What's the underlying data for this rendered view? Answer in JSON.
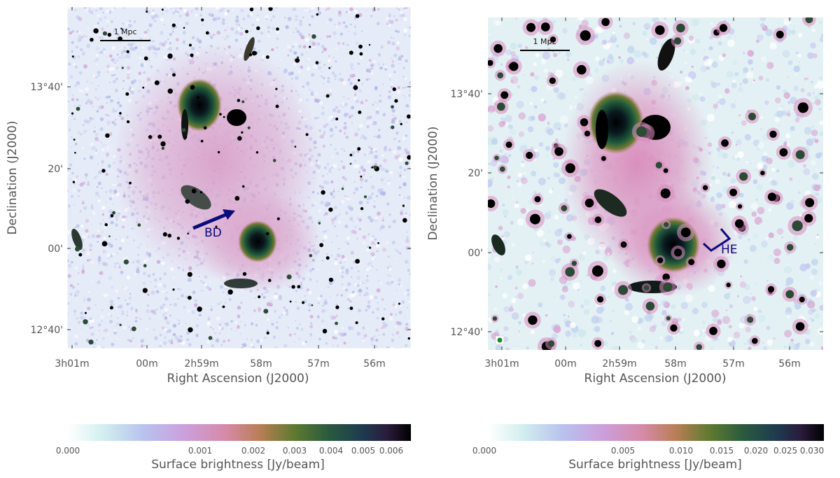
{
  "panels": [
    {
      "scale_label": "1 Mpc",
      "annotation": "BD",
      "x_ticks": [
        "3h01m",
        "00m",
        "2h59m",
        "58m",
        "57m",
        "56m"
      ],
      "y_ticks": [
        "13°40'",
        "20'",
        "00'",
        "12°40'"
      ],
      "xlabel": "Right Ascension (J2000)",
      "ylabel": "Declination (J2000)",
      "colorbar": {
        "label": "Surface brightness [Jy/beam]",
        "ticks": [
          "0.000",
          "0.001",
          "0.002",
          "0.003",
          "0.004",
          "0.005",
          "0.006"
        ]
      }
    },
    {
      "scale_label": "1 Mpc",
      "annotation": "HE",
      "x_ticks": [
        "3h01m",
        "00m",
        "2h59m",
        "58m",
        "57m",
        "56m"
      ],
      "y_ticks": [
        "13°40'",
        "20'",
        "00'",
        "12°40'"
      ],
      "xlabel": "Right Ascension (J2000)",
      "ylabel": "Declination (J2000)",
      "colorbar": {
        "label": "Surface brightness [Jy/beam]",
        "ticks": [
          "0.000",
          "0.005",
          "0.010",
          "0.015",
          "0.020",
          "0.025",
          "0.030"
        ]
      }
    }
  ],
  "colors": {
    "annotation": "#0b0b7a",
    "halo": "#d99ac6",
    "background_noise": "#bcc6ea"
  }
}
